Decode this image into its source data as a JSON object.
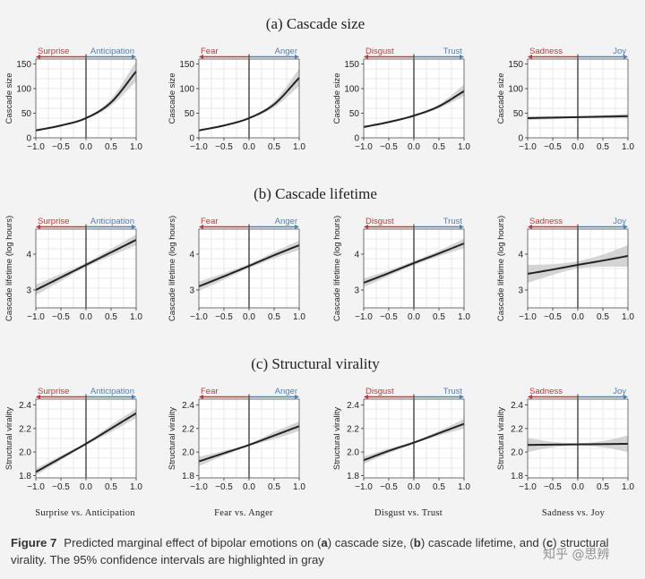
{
  "figure": {
    "row_titles": [
      "(a) Cascade size",
      "(b) Cascade lifetime",
      "(c) Structural virality"
    ],
    "bottom_labels": [
      "Surprise vs. Anticipation",
      "Fear vs. Anger",
      "Disgust vs. Trust",
      "Sadness vs. Joy"
    ],
    "caption_label": "Figure 7",
    "caption_parts": [
      "Predicted marginal effect of bipolar emotions on (",
      "a",
      ") cascade size, (",
      "b",
      ") cascade lifetime, and (",
      "c",
      ") structural virality. The 95% confidence intervals are highlighted in gray"
    ],
    "watermark": "知乎 @思辨",
    "colors": {
      "negative": "#c8363f",
      "positive": "#4f80b8",
      "line": "#222222",
      "ci_band": "#cfcfcf",
      "grid": "#e3e3e3"
    }
  },
  "chart_data": [
    {
      "type": "line",
      "row": "(a) Cascade size",
      "ylabel": "Cascade size",
      "negative_label": "Surprise",
      "positive_label": "Anticipation",
      "xlim": [
        -1,
        1
      ],
      "ylim": [
        0,
        160
      ],
      "yticks": [
        0,
        50,
        100,
        150
      ],
      "xticks": [
        "−1.0",
        "−0.5",
        "0.0",
        "0.5",
        "1.0"
      ],
      "x": [
        -1,
        -0.5,
        0,
        0.5,
        1
      ],
      "y": [
        15,
        25,
        40,
        72,
        135
      ],
      "ci_lower": [
        13,
        23,
        38,
        65,
        115
      ],
      "ci_upper": [
        17,
        27,
        42,
        79,
        155
      ]
    },
    {
      "type": "line",
      "row": "(a) Cascade size",
      "ylabel": "Cascade size",
      "negative_label": "Fear",
      "positive_label": "Anger",
      "xlim": [
        -1,
        1
      ],
      "ylim": [
        0,
        160
      ],
      "yticks": [
        0,
        50,
        100,
        150
      ],
      "xticks": [
        "−1.0",
        "−0.5",
        "0.0",
        "0.5",
        "1.0"
      ],
      "x": [
        -1,
        -0.5,
        0,
        0.5,
        1
      ],
      "y": [
        15,
        25,
        40,
        68,
        122
      ],
      "ci_lower": [
        13,
        23,
        38,
        62,
        105
      ],
      "ci_upper": [
        17,
        27,
        42,
        74,
        140
      ]
    },
    {
      "type": "line",
      "row": "(a) Cascade size",
      "ylabel": "Cascade size",
      "negative_label": "Disgust",
      "positive_label": "Trust",
      "xlim": [
        -1,
        1
      ],
      "ylim": [
        0,
        160
      ],
      "yticks": [
        0,
        50,
        100,
        150
      ],
      "xticks": [
        "−1.0",
        "−0.5",
        "0.0",
        "0.5",
        "1.0"
      ],
      "x": [
        -1,
        -0.5,
        0,
        0.5,
        1
      ],
      "y": [
        22,
        32,
        45,
        64,
        95
      ],
      "ci_lower": [
        20,
        30,
        43,
        60,
        85
      ],
      "ci_upper": [
        24,
        34,
        47,
        68,
        108
      ]
    },
    {
      "type": "line",
      "row": "(a) Cascade size",
      "ylabel": "Cascade size",
      "negative_label": "Sadness",
      "positive_label": "Joy",
      "xlim": [
        -1,
        1
      ],
      "ylim": [
        0,
        160
      ],
      "yticks": [
        0,
        50,
        100,
        150
      ],
      "xticks": [
        "−1.0",
        "−0.5",
        "0.0",
        "0.5",
        "1.0"
      ],
      "x": [
        -1,
        -0.5,
        0,
        0.5,
        1
      ],
      "y": [
        40,
        41,
        42,
        43,
        44
      ],
      "ci_lower": [
        36,
        38,
        40,
        40,
        39
      ],
      "ci_upper": [
        44,
        44,
        44,
        46,
        49
      ]
    },
    {
      "type": "line",
      "row": "(b) Cascade lifetime",
      "ylabel": "Cascade lifetime (log hours)",
      "negative_label": "Surprise",
      "positive_label": "Anticipation",
      "xlim": [
        -1,
        1
      ],
      "ylim": [
        2.5,
        4.7
      ],
      "yticks": [
        3,
        4
      ],
      "xticks": [
        "−1.0",
        "−0.5",
        "0.0",
        "0.5",
        "1.0"
      ],
      "x": [
        -1,
        -0.5,
        0,
        0.5,
        1
      ],
      "y": [
        3.0,
        3.35,
        3.7,
        4.05,
        4.4
      ],
      "ci_lower": [
        2.85,
        3.25,
        3.64,
        3.95,
        4.25
      ],
      "ci_upper": [
        3.15,
        3.45,
        3.76,
        4.15,
        4.55
      ]
    },
    {
      "type": "line",
      "row": "(b) Cascade lifetime",
      "ylabel": "Cascade lifetime (log hours)",
      "negative_label": "Fear",
      "positive_label": "Anger",
      "xlim": [
        -1,
        1
      ],
      "ylim": [
        2.5,
        4.7
      ],
      "yticks": [
        3,
        4
      ],
      "xticks": [
        "−1.0",
        "−0.5",
        "0.0",
        "0.5",
        "1.0"
      ],
      "x": [
        -1,
        -0.5,
        0,
        0.5,
        1
      ],
      "y": [
        3.1,
        3.38,
        3.67,
        3.97,
        4.25
      ],
      "ci_lower": [
        2.97,
        3.29,
        3.61,
        3.88,
        4.12
      ],
      "ci_upper": [
        3.23,
        3.47,
        3.73,
        4.06,
        4.38
      ]
    },
    {
      "type": "line",
      "row": "(b) Cascade lifetime",
      "ylabel": "Cascade lifetime (log hours)",
      "negative_label": "Disgust",
      "positive_label": "Trust",
      "xlim": [
        -1,
        1
      ],
      "ylim": [
        2.5,
        4.7
      ],
      "yticks": [
        3,
        4
      ],
      "xticks": [
        "−1.0",
        "−0.5",
        "0.0",
        "0.5",
        "1.0"
      ],
      "x": [
        -1,
        -0.5,
        0,
        0.5,
        1
      ],
      "y": [
        3.2,
        3.47,
        3.75,
        4.02,
        4.3
      ],
      "ci_lower": [
        3.08,
        3.39,
        3.69,
        3.94,
        4.17
      ],
      "ci_upper": [
        3.32,
        3.55,
        3.81,
        4.1,
        4.43
      ]
    },
    {
      "type": "line",
      "row": "(b) Cascade lifetime",
      "ylabel": "Cascade lifetime (log hours)",
      "negative_label": "Sadness",
      "positive_label": "Joy",
      "xlim": [
        -1,
        1
      ],
      "ylim": [
        2.5,
        4.7
      ],
      "yticks": [
        3,
        4
      ],
      "xticks": [
        "−1.0",
        "−0.5",
        "0.0",
        "0.5",
        "1.0"
      ],
      "x": [
        -1,
        -0.5,
        0,
        0.5,
        1
      ],
      "y": [
        3.45,
        3.57,
        3.7,
        3.82,
        3.95
      ],
      "ci_lower": [
        3.2,
        3.42,
        3.6,
        3.65,
        3.65
      ],
      "ci_upper": [
        3.7,
        3.72,
        3.8,
        3.99,
        4.25
      ]
    },
    {
      "type": "line",
      "row": "(c) Structural virality",
      "ylabel": "Structural virality",
      "negative_label": "Surprise",
      "positive_label": "Anticipation",
      "xlim": [
        -1,
        1
      ],
      "ylim": [
        1.78,
        2.45
      ],
      "yticks": [
        1.8,
        2.0,
        2.2,
        2.4
      ],
      "xticks": [
        "−1.0",
        "−0.5",
        "0.0",
        "0.5",
        "1.0"
      ],
      "x": [
        -1,
        -0.5,
        0,
        0.5,
        1
      ],
      "y": [
        1.83,
        1.95,
        2.07,
        2.2,
        2.33
      ],
      "ci_lower": [
        1.8,
        1.93,
        2.06,
        2.17,
        2.29
      ],
      "ci_upper": [
        1.86,
        1.97,
        2.08,
        2.23,
        2.37
      ]
    },
    {
      "type": "line",
      "row": "(c) Structural virality",
      "ylabel": "Structural virality",
      "negative_label": "Fear",
      "positive_label": "Anger",
      "xlim": [
        -1,
        1
      ],
      "ylim": [
        1.78,
        2.45
      ],
      "yticks": [
        1.8,
        2.0,
        2.2,
        2.4
      ],
      "xticks": [
        "−1.0",
        "−0.5",
        "0.0",
        "0.5",
        "1.0"
      ],
      "x": [
        -1,
        -0.5,
        0,
        0.5,
        1
      ],
      "y": [
        1.92,
        1.99,
        2.06,
        2.14,
        2.22
      ],
      "ci_lower": [
        1.88,
        1.97,
        2.05,
        2.11,
        2.18
      ],
      "ci_upper": [
        1.96,
        2.01,
        2.07,
        2.17,
        2.26
      ]
    },
    {
      "type": "line",
      "row": "(c) Structural virality",
      "ylabel": "Structural virality",
      "negative_label": "Disgust",
      "positive_label": "Trust",
      "xlim": [
        -1,
        1
      ],
      "ylim": [
        1.78,
        2.45
      ],
      "yticks": [
        1.8,
        2.0,
        2.2,
        2.4
      ],
      "xticks": [
        "−1.0",
        "−0.5",
        "0.0",
        "0.5",
        "1.0"
      ],
      "x": [
        -1,
        -0.5,
        0,
        0.5,
        1
      ],
      "y": [
        1.93,
        2.01,
        2.08,
        2.16,
        2.24
      ],
      "ci_lower": [
        1.9,
        1.99,
        2.07,
        2.14,
        2.2
      ],
      "ci_upper": [
        1.96,
        2.03,
        2.09,
        2.18,
        2.28
      ]
    },
    {
      "type": "line",
      "row": "(c) Structural virality",
      "ylabel": "Structural virality",
      "negative_label": "Sadness",
      "positive_label": "Joy",
      "xlim": [
        -1,
        1
      ],
      "ylim": [
        1.78,
        2.45
      ],
      "yticks": [
        1.8,
        2.0,
        2.2,
        2.4
      ],
      "xticks": [
        "−1.0",
        "−0.5",
        "0.0",
        "0.5",
        "1.0"
      ],
      "x": [
        -1,
        -0.5,
        0,
        0.5,
        1
      ],
      "y": [
        2.06,
        2.063,
        2.065,
        2.067,
        2.07
      ],
      "ci_lower": [
        2.0,
        2.04,
        2.055,
        2.04,
        2.0
      ],
      "ci_upper": [
        2.12,
        2.086,
        2.075,
        2.094,
        2.14
      ]
    }
  ]
}
